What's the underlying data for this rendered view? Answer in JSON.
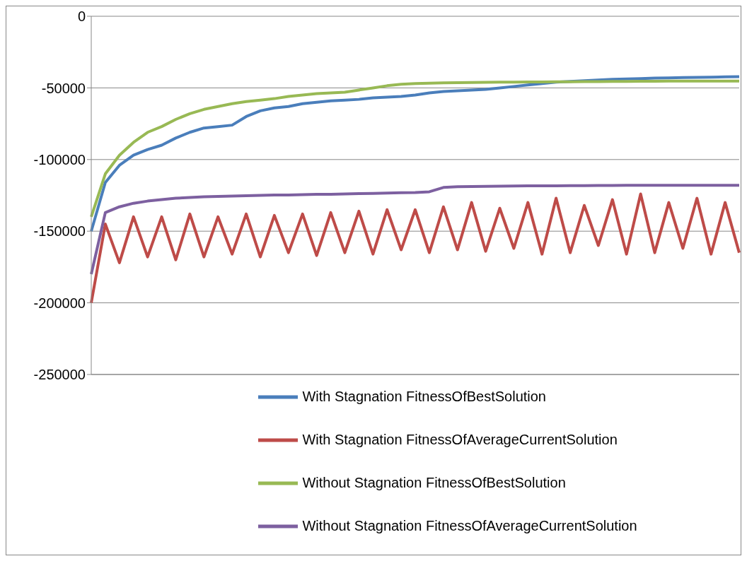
{
  "chart_data": {
    "type": "line",
    "categories": [
      null,
      null,
      null,
      null,
      null,
      null,
      null,
      null,
      null,
      null,
      null,
      null,
      null,
      null,
      null,
      null,
      null,
      null,
      null,
      null,
      null,
      null,
      null,
      null,
      null,
      null,
      null,
      null,
      null,
      null,
      null,
      null,
      null,
      null,
      null,
      null,
      null,
      null,
      null,
      null,
      null,
      null,
      null,
      null,
      null,
      null,
      null
    ],
    "series": [
      {
        "name": "With Stagnation FitnessOfBestSolution",
        "color": "#4a7ebb",
        "values": [
          -150000,
          -116000,
          -104000,
          -97000,
          -93000,
          -90000,
          -85000,
          -81000,
          -78000,
          -77000,
          -76000,
          -70000,
          -66000,
          -64000,
          -63000,
          -61000,
          -60000,
          -59000,
          -58500,
          -58000,
          -57000,
          -56500,
          -56000,
          -55000,
          -53500,
          -52500,
          -52000,
          -51500,
          -51000,
          -50000,
          -49000,
          -48000,
          -47000,
          -46000,
          -45500,
          -45000,
          -44500,
          -44000,
          -43800,
          -43500,
          -43200,
          -43000,
          -42800,
          -42600,
          -42500,
          -42300,
          -42200
        ]
      },
      {
        "name": "With Stagnation FitnessOfAverageCurrentSolution",
        "color": "#be4b48",
        "values": [
          -200000,
          -145000,
          -172000,
          -140000,
          -168000,
          -140000,
          -170000,
          -138000,
          -168000,
          -140000,
          -166000,
          -138000,
          -168000,
          -139000,
          -165000,
          -138000,
          -167000,
          -137000,
          -165000,
          -136000,
          -166000,
          -135000,
          -163000,
          -135000,
          -165000,
          -133000,
          -163000,
          -130000,
          -164000,
          -134000,
          -162000,
          -130000,
          -166000,
          -127000,
          -165000,
          -132000,
          -160000,
          -128000,
          -166000,
          -124000,
          -165000,
          -130000,
          -162000,
          -127000,
          -166000,
          -130000,
          -165000
        ]
      },
      {
        "name": "Without Stagnation FitnessOfBestSolution",
        "color": "#98b954",
        "values": [
          -140000,
          -110000,
          -97000,
          -88000,
          -81000,
          -77000,
          -72000,
          -68000,
          -65000,
          -63000,
          -61000,
          -59500,
          -58500,
          -57500,
          -56000,
          -55000,
          -54000,
          -53500,
          -53000,
          -51500,
          -50000,
          -48500,
          -47500,
          -47000,
          -46700,
          -46500,
          -46300,
          -46200,
          -46100,
          -46000,
          -46000,
          -45900,
          -45800,
          -45700,
          -45700,
          -45600,
          -45600,
          -45500,
          -45500,
          -45400,
          -45400,
          -45300,
          -45300,
          -45200,
          -45200,
          -45200,
          -45200
        ]
      },
      {
        "name": "Without Stagnation FitnessOfAverageCurrentSolution",
        "color": "#7d60a0",
        "values": [
          -180000,
          -137000,
          -133000,
          -130500,
          -129000,
          -128000,
          -127000,
          -126500,
          -126000,
          -125800,
          -125500,
          -125300,
          -125000,
          -124800,
          -124700,
          -124500,
          -124300,
          -124200,
          -124000,
          -123800,
          -123600,
          -123400,
          -123200,
          -123000,
          -122500,
          -119500,
          -119000,
          -118800,
          -118700,
          -118600,
          -118500,
          -118400,
          -118300,
          -118300,
          -118200,
          -118200,
          -118100,
          -118100,
          -118000,
          -118000,
          -118000,
          -118000,
          -118000,
          -118000,
          -118000,
          -118000,
          -118000
        ]
      }
    ],
    "ylim": [
      -250000,
      0
    ],
    "yticks": [
      0,
      -50000,
      -100000,
      -150000,
      -200000,
      -250000
    ],
    "grid": "y",
    "legend": "bottom",
    "tick_labels": "y",
    "marker": "none",
    "line_style": "solid"
  }
}
